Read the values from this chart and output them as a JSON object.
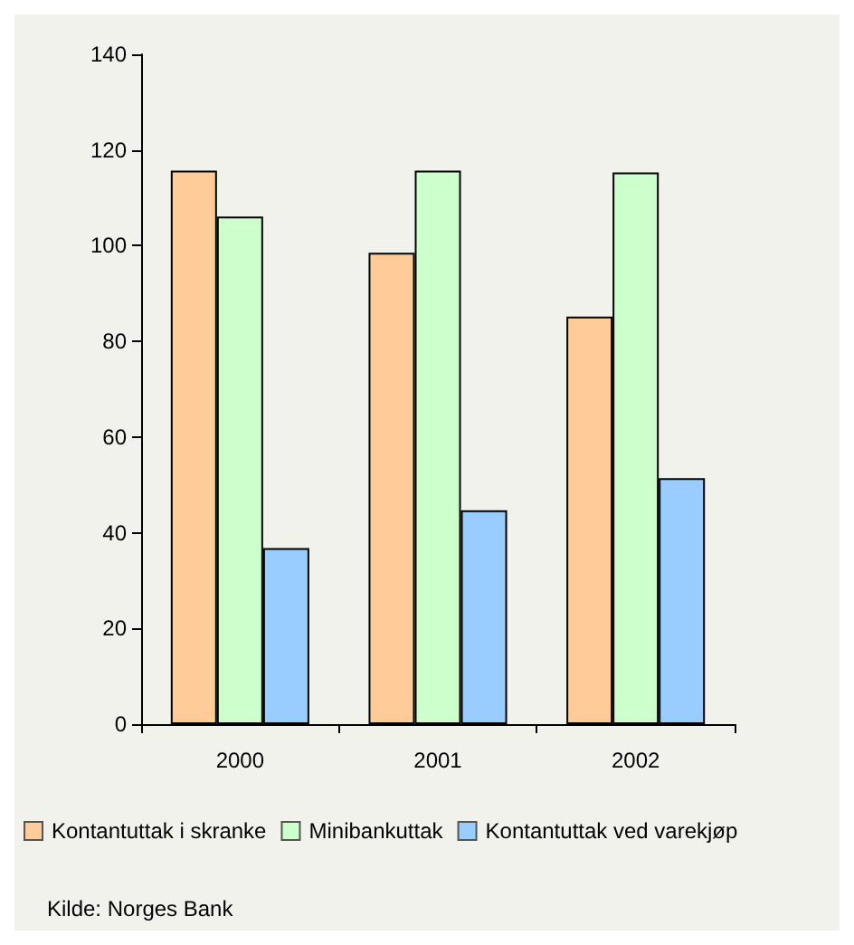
{
  "chart_data": {
    "type": "bar",
    "categories": [
      "2000",
      "2001",
      "2002"
    ],
    "series": [
      {
        "name": "Kontantuttak i skranke",
        "color": "#ffcc99",
        "values": [
          115.7,
          98.5,
          85.2
        ]
      },
      {
        "name": "Minibankuttak",
        "color": "#ccffcc",
        "values": [
          106.1,
          115.7,
          115.3
        ]
      },
      {
        "name": "Kontantuttak ved varekjøp",
        "color": "#99ccff",
        "values": [
          36.8,
          44.7,
          51.4
        ]
      }
    ],
    "ylim": [
      0,
      140
    ],
    "yticks": [
      0,
      20,
      40,
      60,
      80,
      100,
      120,
      140
    ],
    "grid": false,
    "legend": "bottom",
    "annotations": [
      "Kilde: Norges Bank"
    ]
  }
}
